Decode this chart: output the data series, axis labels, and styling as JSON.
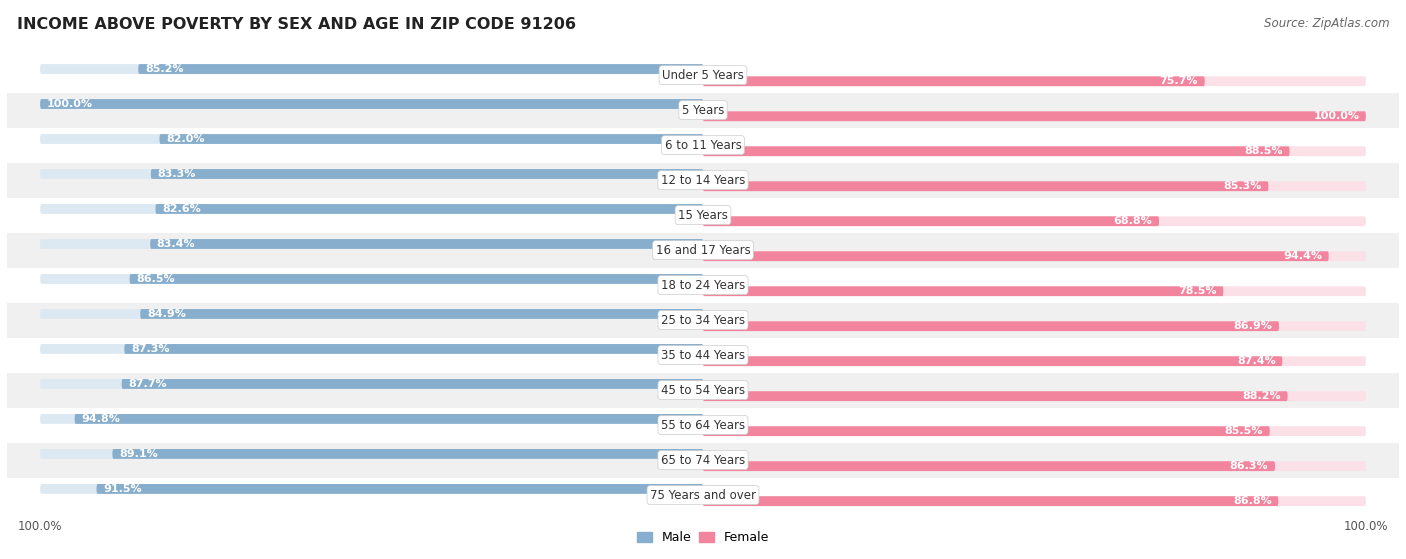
{
  "title": "INCOME ABOVE POVERTY BY SEX AND AGE IN ZIP CODE 91206",
  "source": "Source: ZipAtlas.com",
  "categories": [
    "Under 5 Years",
    "5 Years",
    "6 to 11 Years",
    "12 to 14 Years",
    "15 Years",
    "16 and 17 Years",
    "18 to 24 Years",
    "25 to 34 Years",
    "35 to 44 Years",
    "45 to 54 Years",
    "55 to 64 Years",
    "65 to 74 Years",
    "75 Years and over"
  ],
  "male_values": [
    85.2,
    100.0,
    82.0,
    83.3,
    82.6,
    83.4,
    86.5,
    84.9,
    87.3,
    87.7,
    94.8,
    89.1,
    91.5
  ],
  "female_values": [
    75.7,
    100.0,
    88.5,
    85.3,
    68.8,
    94.4,
    78.5,
    86.9,
    87.4,
    88.2,
    85.5,
    86.3,
    86.8
  ],
  "male_color": "#87AECC",
  "female_color": "#F2849E",
  "male_bg_color": "#dce8f2",
  "female_bg_color": "#fce0e8",
  "row_bg_white": "#ffffff",
  "row_bg_gray": "#f0f0f0",
  "title_fontsize": 11.5,
  "label_fontsize": 8.5,
  "value_fontsize": 8,
  "source_fontsize": 8.5,
  "legend_fontsize": 9
}
